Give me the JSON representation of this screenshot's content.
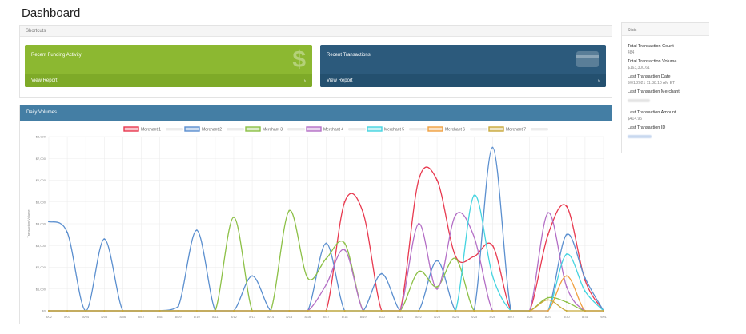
{
  "page": {
    "title": "Dashboard"
  },
  "shortcuts": {
    "header": "Shortcuts",
    "tiles": [
      {
        "title": "Recent Funding Activity",
        "link": "View Report",
        "icon": "dollar-icon",
        "color": "#8cb831"
      },
      {
        "title": "Recent Transactions",
        "link": "View Report",
        "icon": "credit-card-icon",
        "color": "#2c5a7c"
      }
    ]
  },
  "stats": {
    "header": "Stats",
    "items": [
      {
        "label": "Total Transaction Count",
        "value": "484"
      },
      {
        "label": "Total Transaction Volume",
        "value": "$163,300.61"
      },
      {
        "label": "Last Transaction Date",
        "value": "9/01/2021 11:38:10 AM ET"
      },
      {
        "label": "Last Transaction Merchant",
        "value": ""
      },
      {
        "label": "Last Transaction Amount",
        "value": "$414.95"
      },
      {
        "label": "Last Transaction ID",
        "value": ""
      }
    ]
  },
  "volumes": {
    "header": "Daily Volumes"
  },
  "chart_data": {
    "type": "line",
    "ylabel": "Transaction Volume",
    "ylim": [
      0,
      8000
    ],
    "yticks": [
      "$0",
      "$1,000",
      "$2,000",
      "$3,000",
      "$4,000",
      "$5,000",
      "$6,000",
      "$7,000",
      "$8,000"
    ],
    "grid": true,
    "legend_position": "top",
    "categories": [
      "8/02",
      "8/03",
      "8/04",
      "8/05",
      "8/06",
      "8/07",
      "8/08",
      "8/09",
      "8/10",
      "8/11",
      "8/12",
      "8/13",
      "8/14",
      "8/15",
      "8/16",
      "8/17",
      "8/18",
      "8/19",
      "8/20",
      "8/21",
      "8/22",
      "8/23",
      "8/24",
      "8/25",
      "8/26",
      "8/27",
      "8/28",
      "8/29",
      "8/30",
      "8/31",
      "9/01"
    ],
    "series": [
      {
        "name": "Merchant 1",
        "color": "#e8394f",
        "values": [
          0,
          0,
          0,
          0,
          0,
          0,
          0,
          0,
          0,
          0,
          0,
          0,
          0,
          0,
          0,
          0,
          5000,
          4500,
          0,
          0,
          6000,
          6000,
          2500,
          2500,
          3000,
          0,
          0,
          3500,
          4800,
          1400,
          0
        ]
      },
      {
        "name": "Merchant 2",
        "color": "#5b8fcf",
        "values": [
          4100,
          3600,
          0,
          3300,
          0,
          0,
          0,
          200,
          3700,
          0,
          0,
          1600,
          0,
          0,
          0,
          3100,
          0,
          0,
          1700,
          0,
          0,
          2300,
          0,
          0,
          7500,
          0,
          0,
          0,
          3500,
          1500,
          0
        ]
      },
      {
        "name": "Merchant 3",
        "color": "#8cc046",
        "values": [
          0,
          0,
          0,
          0,
          0,
          0,
          0,
          0,
          0,
          0,
          4300,
          0,
          0,
          4600,
          1500,
          2400,
          3100,
          0,
          0,
          0,
          1800,
          1100,
          2400,
          0,
          0,
          0,
          0,
          600,
          400,
          0,
          0
        ]
      },
      {
        "name": "Merchant 4",
        "color": "#b46fc6",
        "values": [
          0,
          0,
          0,
          0,
          0,
          0,
          0,
          0,
          0,
          0,
          0,
          0,
          0,
          0,
          0,
          1200,
          2800,
          0,
          0,
          0,
          4000,
          1000,
          4400,
          3400,
          0,
          0,
          0,
          4500,
          1100,
          0,
          0
        ]
      },
      {
        "name": "Merchant 5",
        "color": "#45d4e0",
        "values": [
          0,
          0,
          0,
          0,
          0,
          0,
          0,
          0,
          0,
          0,
          0,
          0,
          0,
          0,
          0,
          0,
          0,
          0,
          0,
          0,
          0,
          0,
          0,
          5300,
          1600,
          0,
          0,
          0,
          2600,
          900,
          0
        ]
      },
      {
        "name": "Merchant 6",
        "color": "#f0a040",
        "values": [
          0,
          0,
          0,
          0,
          0,
          0,
          0,
          0,
          0,
          0,
          0,
          0,
          0,
          0,
          0,
          0,
          0,
          0,
          0,
          0,
          0,
          0,
          0,
          0,
          0,
          0,
          0,
          0,
          1600,
          0,
          0
        ]
      },
      {
        "name": "Merchant 7",
        "color": "#c8a93a",
        "values": [
          0,
          0,
          0,
          0,
          0,
          0,
          0,
          0,
          0,
          0,
          0,
          0,
          0,
          0,
          0,
          0,
          0,
          0,
          0,
          0,
          0,
          0,
          0,
          0,
          0,
          0,
          0,
          500,
          0,
          0,
          0
        ]
      }
    ]
  }
}
